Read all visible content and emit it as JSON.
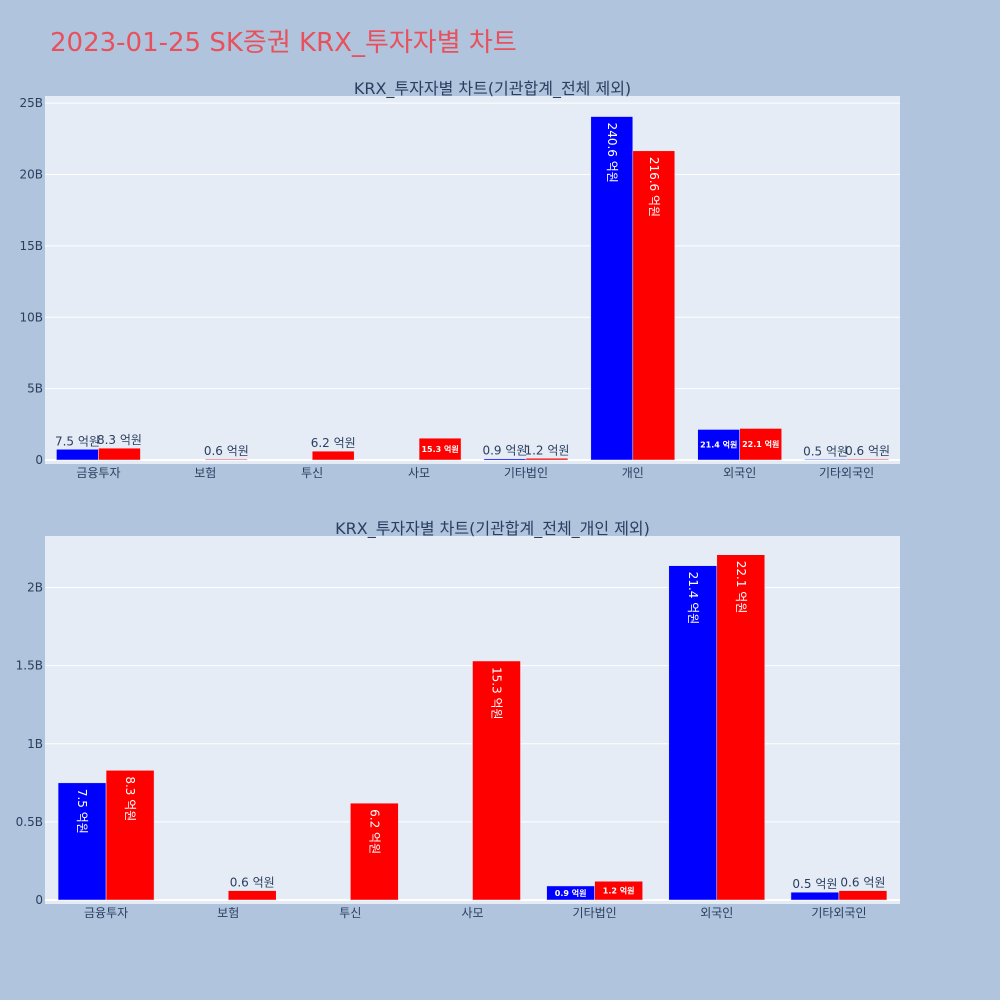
{
  "page": {
    "title": "2023-01-25 SK증권 KRX_투자자별 차트",
    "background": "#b0c4de",
    "title_color": "#e8515c"
  },
  "colors": {
    "plot_bg": "#e5ecf6",
    "grid": "#ffffff",
    "buy": "#0000ff",
    "sell": "#ff0000",
    "text": "#2a3f5f"
  },
  "chart_data": [
    {
      "type": "bar",
      "title": "KRX_투자자별 차트(기관합계_전체 제외)",
      "categories": [
        "금융투자",
        "보험",
        "투신",
        "사모",
        "기타법인",
        "개인",
        "외국인",
        "기타외국인"
      ],
      "series": [
        {
          "color": "#0000ff",
          "values": [
            0.75,
            0,
            0,
            0,
            0.09,
            24.06,
            2.14,
            0.05
          ],
          "labels": [
            "7.5 억원",
            "",
            "",
            "",
            "0.9 억원",
            "240.6 억원",
            "21.4 억원",
            "0.5 억원"
          ]
        },
        {
          "color": "#ff0000",
          "values": [
            0.83,
            0.06,
            0.62,
            1.53,
            0.12,
            21.66,
            2.21,
            0.06
          ],
          "labels": [
            "8.3 억원",
            "0.6 억원",
            "6.2 억원",
            "15.3 억원",
            "1.2 억원",
            "216.6 억원",
            "22.1 억원",
            "0.6 억원"
          ]
        }
      ],
      "ylim": [
        0,
        25.5
      ],
      "yticks": [
        0,
        5,
        10,
        15,
        20,
        25
      ],
      "ytick_labels": [
        "0",
        "5B",
        "10B",
        "15B",
        "20B",
        "25B"
      ],
      "grid": true
    },
    {
      "type": "bar",
      "title": "KRX_투자자별 차트(기관합계_전체_개인 제외)",
      "categories": [
        "금융투자",
        "보험",
        "투신",
        "사모",
        "기타법인",
        "외국인",
        "기타외국인"
      ],
      "series": [
        {
          "color": "#0000ff",
          "values": [
            0.75,
            0,
            0,
            0,
            0.09,
            2.14,
            0.05
          ],
          "labels": [
            "7.5 억원",
            "",
            "",
            "",
            "0.9 억원",
            "21.4 억원",
            "0.5 억원"
          ]
        },
        {
          "color": "#ff0000",
          "values": [
            0.83,
            0.06,
            0.62,
            1.53,
            0.12,
            2.21,
            0.06
          ],
          "labels": [
            "8.3 억원",
            "0.6 억원",
            "6.2 억원",
            "15.3 억원",
            "1.2 억원",
            "22.1 억원",
            "0.6 억원"
          ]
        }
      ],
      "ylim": [
        0,
        2.33
      ],
      "yticks": [
        0,
        0.5,
        1,
        1.5,
        2
      ],
      "ytick_labels": [
        "0",
        "0.5B",
        "1B",
        "1.5B",
        "2B"
      ],
      "grid": true
    }
  ]
}
